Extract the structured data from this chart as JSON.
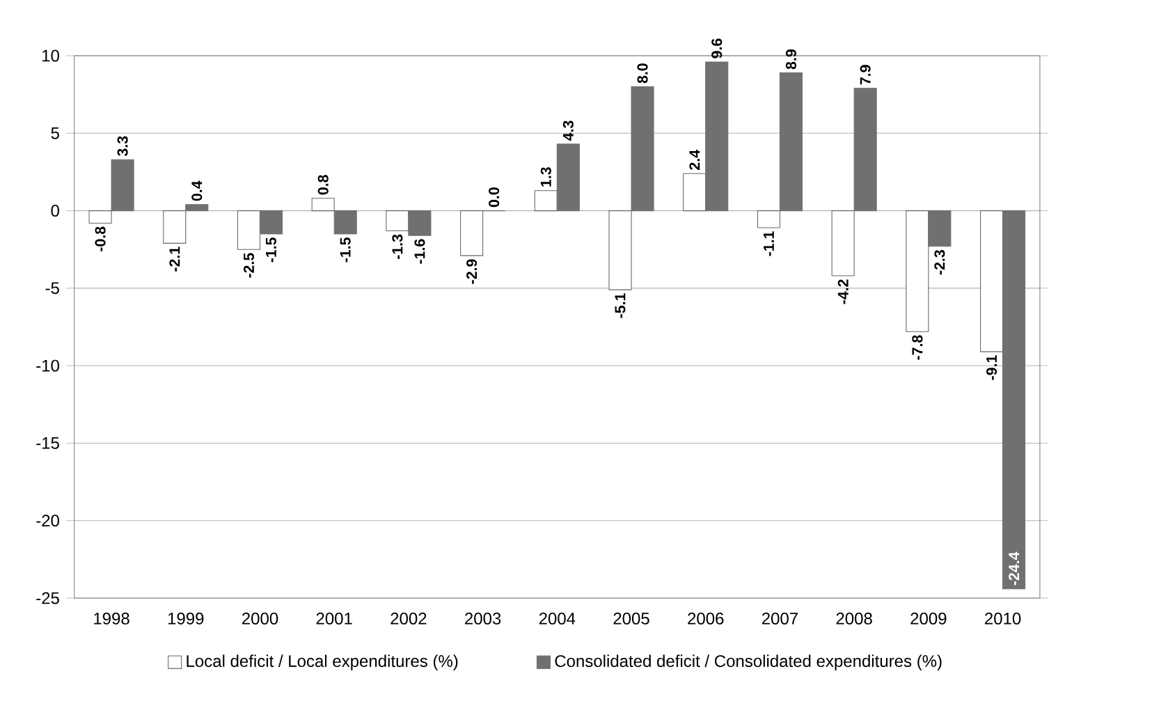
{
  "chart_data": {
    "type": "bar",
    "categories": [
      "1998",
      "1999",
      "2000",
      "2001",
      "2002",
      "2003",
      "2004",
      "2005",
      "2006",
      "2007",
      "2008",
      "2009",
      "2010"
    ],
    "series": [
      {
        "name": "Local deficit / Local expenditures (%)",
        "color": "#ffffff",
        "values": [
          -0.8,
          -2.1,
          -2.5,
          0.8,
          -1.3,
          -2.9,
          1.3,
          -5.1,
          2.4,
          -1.1,
          -4.2,
          -7.8,
          -9.1
        ],
        "value_labels": [
          "-0.8",
          "-2.1",
          "-2.5",
          "0.8",
          "-1.3",
          "-2.9",
          "1.3",
          "-5.1",
          "2.4",
          "-1.1",
          "-4.2",
          "-7.8",
          "-9.1"
        ]
      },
      {
        "name": "Consolidated deficit / Consolidated expenditures (%)",
        "color": "#707070",
        "values": [
          3.3,
          0.4,
          -1.5,
          -1.5,
          -1.6,
          0.0,
          4.3,
          8.0,
          9.6,
          8.9,
          7.9,
          -2.3,
          -24.4
        ],
        "value_labels": [
          "3.3",
          "0.4",
          "-1.5",
          "-1.5",
          "-1.6",
          "0.0",
          "4.3",
          "8.0",
          "9.6",
          "8.9",
          "7.9",
          "-2.3",
          "-24.4"
        ]
      }
    ],
    "ylim": [
      -25,
      10
    ],
    "yticks": [
      -25,
      -20,
      -15,
      -10,
      -5,
      0,
      5,
      10
    ],
    "grid": "y",
    "legend": "bottom"
  }
}
